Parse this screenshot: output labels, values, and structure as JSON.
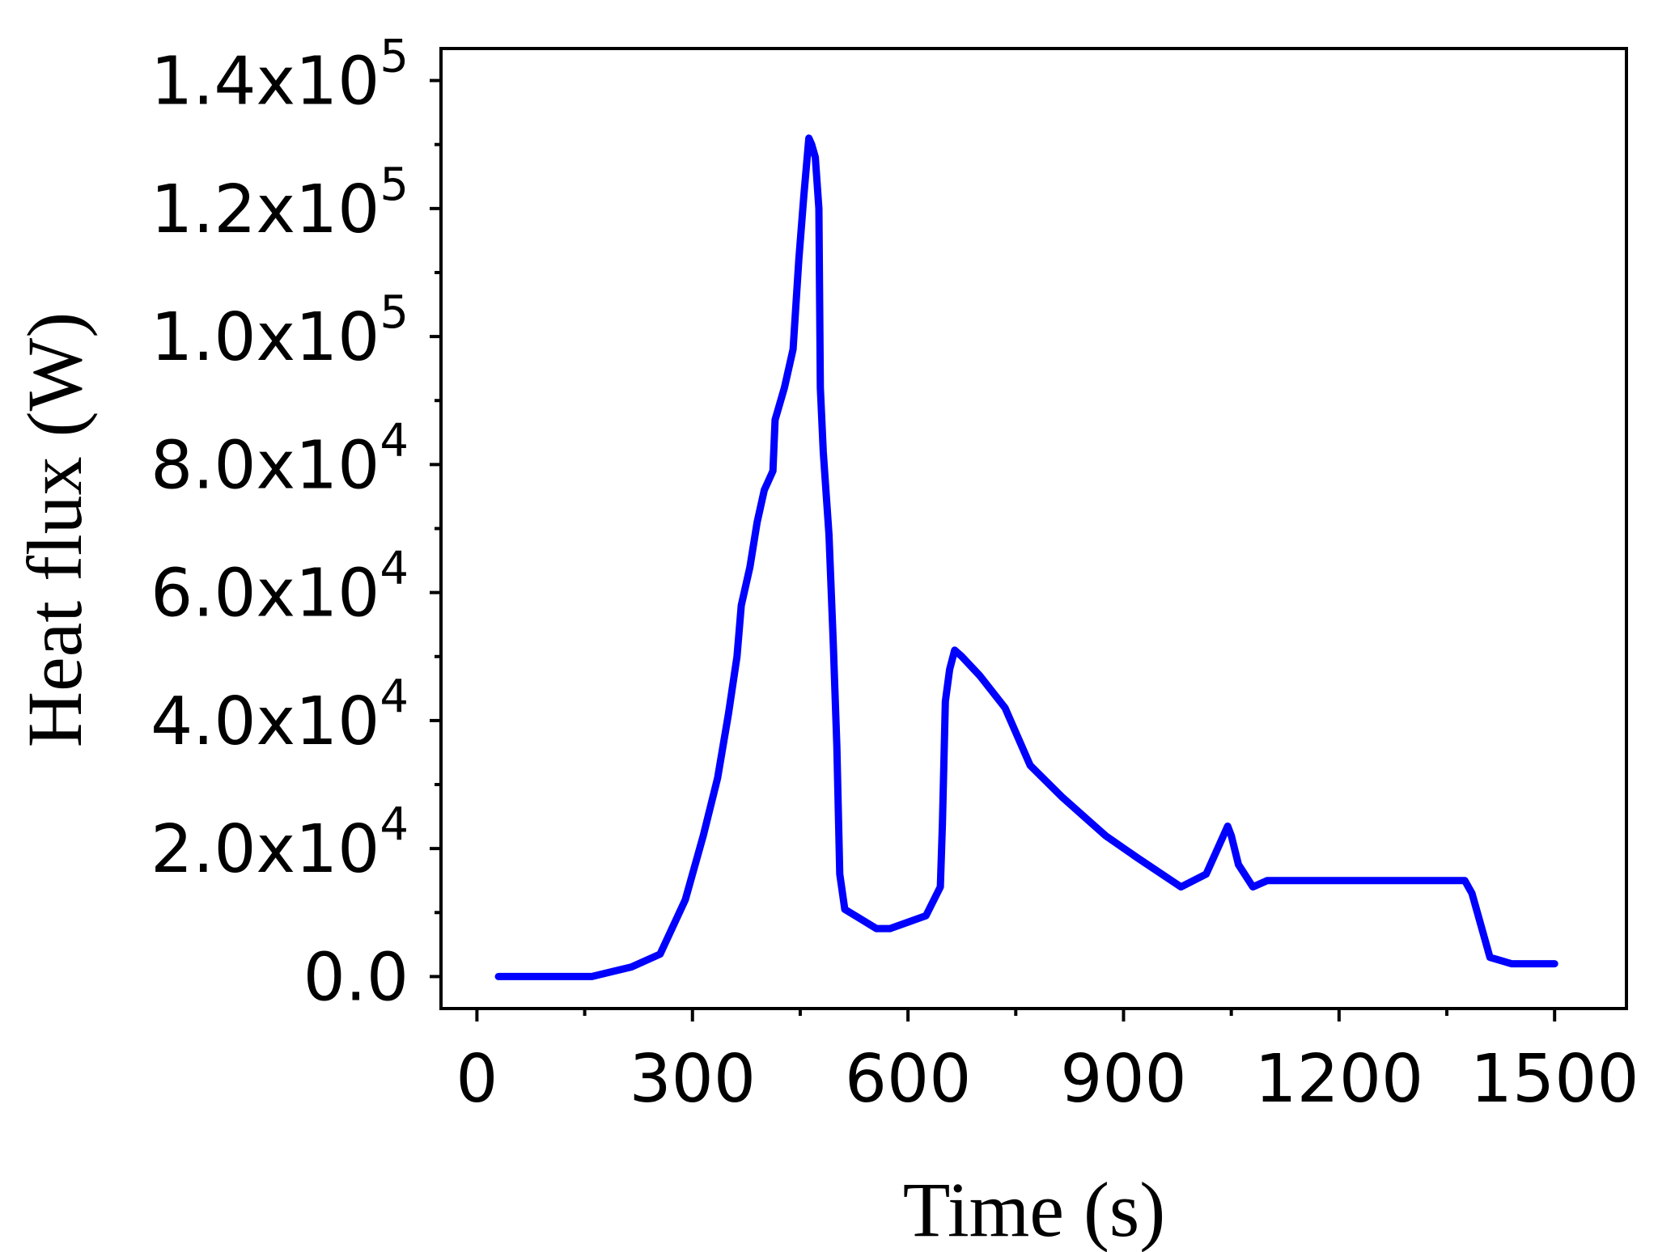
{
  "chart_data": {
    "type": "line",
    "title": "",
    "xlabel": "Time (s)",
    "ylabel": "Heat flux (W)",
    "xlim": [
      -50,
      1600
    ],
    "ylim": [
      -5000,
      145000
    ],
    "x_ticks": [
      0,
      300,
      600,
      900,
      1200,
      1500
    ],
    "x_tick_labels": [
      "0",
      "300",
      "600",
      "900",
      "1200",
      "1500"
    ],
    "x_minor_ticks": [
      150,
      450,
      750,
      1050,
      1350
    ],
    "y_ticks": [
      {
        "value": 0,
        "label": "0.0",
        "exp": ""
      },
      {
        "value": 20000,
        "label": "2.0x10",
        "exp": "4"
      },
      {
        "value": 40000,
        "label": "4.0x10",
        "exp": "4"
      },
      {
        "value": 60000,
        "label": "6.0x10",
        "exp": "4"
      },
      {
        "value": 80000,
        "label": "8.0x10",
        "exp": "4"
      },
      {
        "value": 100000,
        "label": "1.0x10",
        "exp": "5"
      },
      {
        "value": 120000,
        "label": "1.2x10",
        "exp": "5"
      },
      {
        "value": 140000,
        "label": "1.4x10",
        "exp": "5"
      }
    ],
    "y_minor_ticks": [
      10000,
      30000,
      50000,
      70000,
      90000,
      110000,
      130000
    ],
    "grid": false,
    "series": [
      {
        "name": "",
        "color": "#0000ff",
        "x": [
          30,
          90,
          160,
          215,
          255,
          290,
          315,
          335,
          350,
          362,
          368,
          380,
          390,
          400,
          412,
          415,
          428,
          440,
          448,
          455,
          462,
          466,
          471,
          476,
          478,
          482,
          490,
          496,
          501,
          505,
          512,
          556,
          575,
          625,
          645,
          648,
          652,
          658,
          665,
          675,
          700,
          735,
          770,
          815,
          875,
          920,
          980,
          1015,
          1045,
          1050,
          1060,
          1080,
          1100,
          1200,
          1300,
          1375,
          1385,
          1410,
          1440,
          1500
        ],
        "y": [
          0,
          0,
          0,
          1500,
          3500,
          12000,
          22000,
          31000,
          41000,
          50000,
          58000,
          64000,
          71000,
          76000,
          79000,
          87000,
          92000,
          98000,
          112000,
          122000,
          131000,
          130000,
          128000,
          120000,
          92000,
          82000,
          69000,
          52000,
          36000,
          16000,
          10500,
          7500,
          7500,
          9500,
          14000,
          24000,
          43000,
          48000,
          51000,
          50000,
          47000,
          42000,
          33000,
          28000,
          22000,
          18500,
          14000,
          16000,
          23500,
          22000,
          17500,
          14000,
          15000,
          15000,
          15000,
          15000,
          13000,
          3000,
          2000,
          2000
        ]
      }
    ]
  }
}
